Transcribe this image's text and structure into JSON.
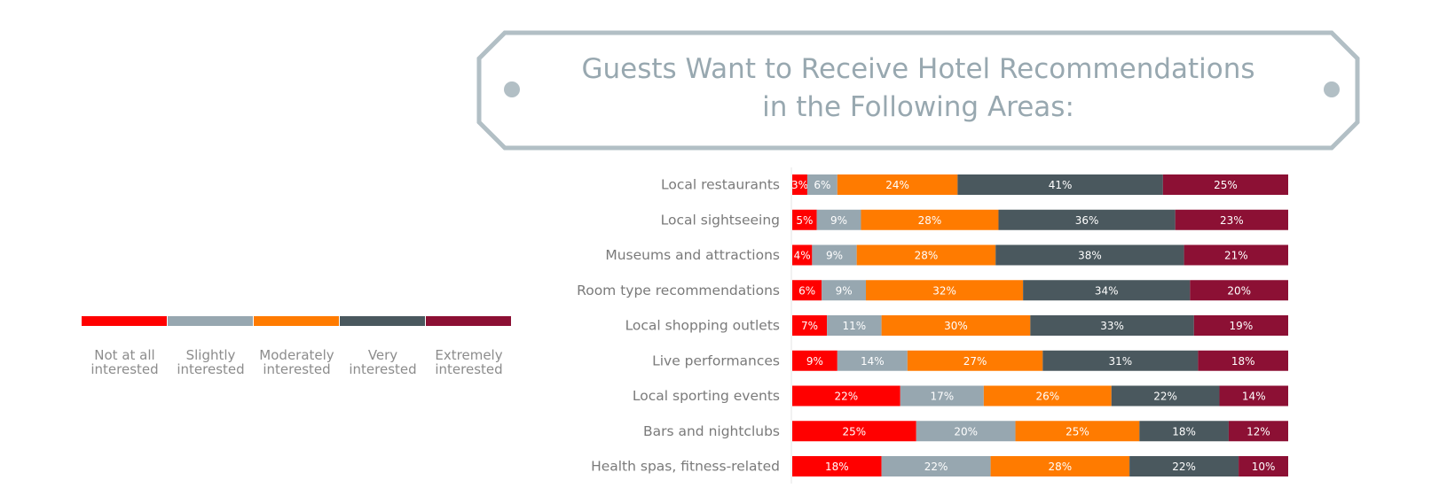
{
  "chart_data": {
    "type": "bar",
    "orientation": "horizontal",
    "stacked": true,
    "title_lines": [
      "Guests Want to Receive Hotel Recommendations",
      "in the Following Areas:"
    ],
    "categories": [
      "Local restaurants",
      "Local sightseeing",
      "Museums and attractions",
      "Room type recommendations",
      "Local shopping outlets",
      "Live performances",
      "Local sporting events",
      "Bars and nightclubs",
      "Health spas, fitness-related"
    ],
    "series": [
      {
        "name": "Not at all interested",
        "color": "#ff0000",
        "values": [
          3,
          5,
          4,
          6,
          7,
          9,
          22,
          25,
          18
        ]
      },
      {
        "name": "Slightly interested",
        "color": "#97a7b0",
        "values": [
          6,
          9,
          9,
          9,
          11,
          14,
          17,
          20,
          22
        ]
      },
      {
        "name": "Moderately interested",
        "color": "#ff7b00",
        "values": [
          24,
          28,
          28,
          32,
          30,
          27,
          26,
          25,
          28
        ]
      },
      {
        "name": "Very interested",
        "color": "#4a585e",
        "values": [
          41,
          36,
          38,
          34,
          33,
          31,
          22,
          18,
          22
        ]
      },
      {
        "name": "Extremely interested",
        "color": "#8c1034",
        "values": [
          25,
          23,
          21,
          20,
          19,
          18,
          14,
          12,
          10
        ]
      }
    ],
    "legend_lines": [
      [
        "Not at all",
        "interested"
      ],
      [
        "Slightly",
        "interested"
      ],
      [
        "Moderately",
        "interested"
      ],
      [
        "Very",
        "interested"
      ],
      [
        "Extremely",
        "interested"
      ]
    ],
    "value_suffix": "%",
    "legend_position": "left",
    "grid": false
  }
}
